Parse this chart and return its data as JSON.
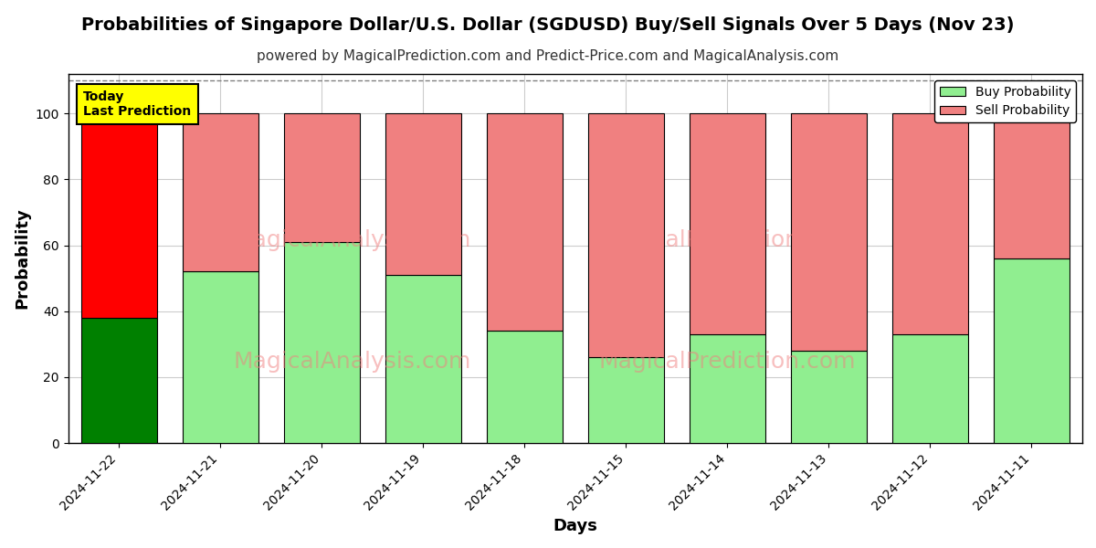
{
  "title": "Probabilities of Singapore Dollar/U.S. Dollar (SGDUSD) Buy/Sell Signals Over 5 Days (Nov 23)",
  "subtitle": "powered by MagicalPrediction.com and Predict-Price.com and MagicalAnalysis.com",
  "xlabel": "Days",
  "ylabel": "Probability",
  "categories": [
    "2024-11-22",
    "2024-11-21",
    "2024-11-20",
    "2024-11-19",
    "2024-11-18",
    "2024-11-15",
    "2024-11-14",
    "2024-11-13",
    "2024-11-12",
    "2024-11-11"
  ],
  "buy_values": [
    38,
    52,
    61,
    51,
    34,
    26,
    33,
    28,
    33,
    56
  ],
  "sell_values": [
    62,
    48,
    39,
    49,
    66,
    74,
    67,
    72,
    67,
    44
  ],
  "buy_color_today": "#008000",
  "sell_color_today": "#FF0000",
  "buy_color_normal": "#90EE90",
  "sell_color_normal": "#F08080",
  "bar_edge_color": "#000000",
  "today_label_bg": "#FFFF00",
  "today_annotation": "Today\nLast Prediction",
  "ylim": [
    0,
    112
  ],
  "yticks": [
    0,
    20,
    40,
    60,
    80,
    100
  ],
  "watermark_left": "MagicalAnalysis.com",
  "watermark_right": "MagicalPrediction.com",
  "grid_color": "#cccccc",
  "dashed_line_y": 110,
  "title_fontsize": 14,
  "subtitle_fontsize": 11,
  "axis_label_fontsize": 13
}
